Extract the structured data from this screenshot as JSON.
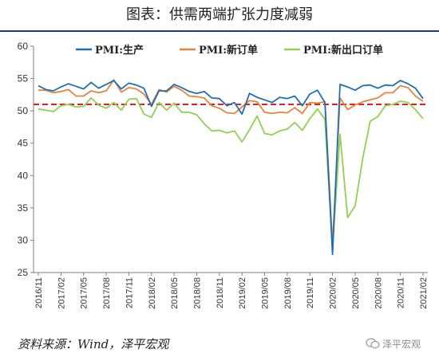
{
  "title": "图表：供需两端扩张力度减弱",
  "source": "资料来源：Wind，泽平宏观",
  "watermark": "泽平宏观",
  "chart_data": {
    "type": "line",
    "x": [
      "2016/11",
      "2016/12",
      "2017/01",
      "2017/02",
      "2017/03",
      "2017/04",
      "2017/05",
      "2017/06",
      "2017/07",
      "2017/08",
      "2017/09",
      "2017/10",
      "2017/11",
      "2017/12",
      "2018/01",
      "2018/02",
      "2018/03",
      "2018/04",
      "2018/05",
      "2018/06",
      "2018/07",
      "2018/08",
      "2018/09",
      "2018/10",
      "2018/11",
      "2018/12",
      "2019/01",
      "2019/02",
      "2019/03",
      "2019/04",
      "2019/05",
      "2019/06",
      "2019/07",
      "2019/08",
      "2019/09",
      "2019/10",
      "2019/11",
      "2019/12",
      "2020/01",
      "2020/02",
      "2020/03",
      "2020/04",
      "2020/05",
      "2020/06",
      "2020/07",
      "2020/08",
      "2020/09",
      "2020/10",
      "2020/11",
      "2020/12",
      "2021/01",
      "2021/02"
    ],
    "xticks": [
      "2016/11",
      "2017/02",
      "2017/05",
      "2017/08",
      "2017/11",
      "2018/02",
      "2018/05",
      "2018/08",
      "2018/11",
      "2019/02",
      "2019/05",
      "2019/08",
      "2019/11",
      "2020/02",
      "2020/05",
      "2020/08",
      "2020/11",
      "2021/02"
    ],
    "ylim": [
      25,
      60
    ],
    "yticks": [
      25,
      30,
      35,
      40,
      45,
      50,
      55,
      60
    ],
    "reference_line": 51,
    "legend_position": "top",
    "series": [
      {
        "name": "PMI:生产",
        "color": "#1f6fb5",
        "values": [
          53.9,
          53.3,
          53.1,
          53.7,
          54.2,
          53.8,
          53.4,
          54.4,
          53.5,
          54.1,
          54.7,
          53.4,
          54.3,
          54.0,
          53.5,
          50.7,
          53.1,
          53.1,
          54.1,
          53.6,
          53.0,
          52.7,
          53.0,
          52.0,
          51.9,
          50.8,
          51.3,
          49.5,
          52.7,
          52.1,
          51.7,
          51.3,
          52.1,
          51.9,
          52.3,
          50.8,
          52.6,
          53.2,
          51.3,
          27.8,
          54.1,
          53.7,
          53.2,
          53.9,
          54.0,
          53.5,
          54.0,
          53.9,
          54.7,
          54.2,
          53.5,
          51.9
        ]
      },
      {
        "name": "PMI:新订单",
        "color": "#e8843a",
        "values": [
          53.2,
          53.2,
          52.8,
          53.0,
          53.3,
          52.3,
          52.3,
          53.1,
          52.8,
          53.1,
          54.8,
          52.9,
          53.6,
          53.4,
          52.6,
          51.0,
          53.3,
          52.9,
          53.8,
          53.2,
          52.3,
          52.2,
          52.0,
          50.8,
          50.4,
          49.7,
          49.6,
          50.6,
          51.6,
          51.4,
          49.8,
          49.6,
          49.8,
          49.7,
          50.5,
          49.6,
          51.3,
          51.2,
          51.4,
          29.3,
          52.0,
          50.2,
          50.9,
          51.4,
          51.7,
          52.0,
          52.8,
          52.8,
          53.9,
          53.6,
          52.3,
          51.5
        ]
      },
      {
        "name": "PMI:新出口订单",
        "color": "#92d050",
        "values": [
          50.3,
          50.1,
          49.9,
          50.8,
          51.0,
          50.6,
          50.7,
          52.0,
          50.9,
          50.4,
          51.3,
          50.1,
          51.8,
          51.9,
          49.5,
          49.0,
          51.3,
          50.1,
          51.2,
          49.8,
          49.8,
          49.4,
          48.0,
          46.9,
          47.0,
          46.6,
          46.9,
          45.2,
          47.1,
          49.2,
          46.5,
          46.3,
          46.9,
          47.2,
          48.2,
          47.0,
          48.8,
          50.3,
          48.7,
          28.7,
          46.4,
          33.5,
          35.3,
          42.6,
          48.4,
          49.1,
          50.8,
          51.0,
          51.5,
          51.3,
          50.2,
          48.8
        ]
      }
    ]
  }
}
